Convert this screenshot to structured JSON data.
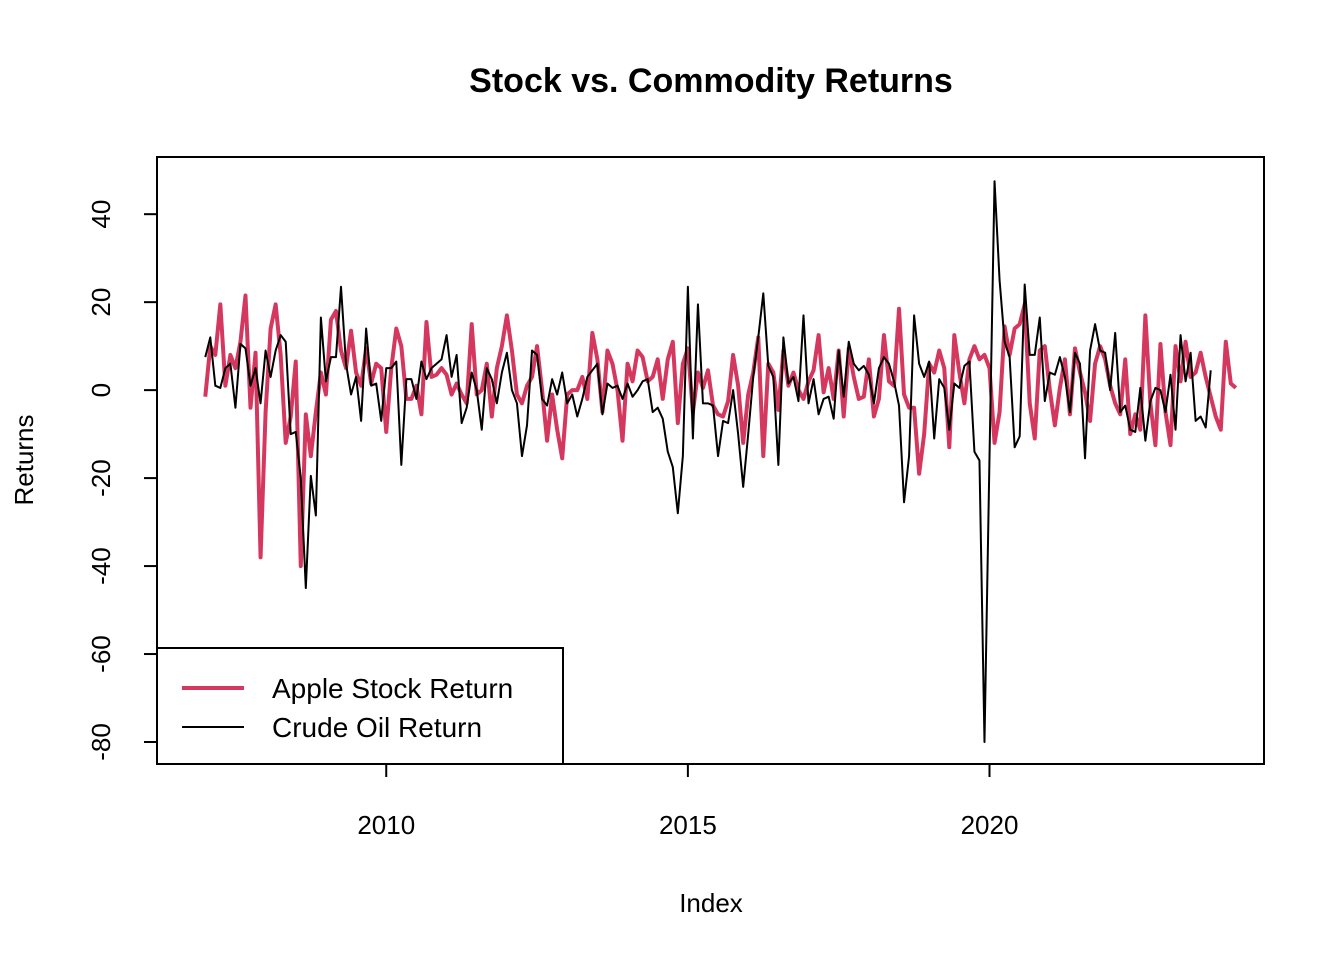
{
  "chart_data": {
    "type": "line",
    "title": "Stock vs. Commodity Returns",
    "xlabel": "Index",
    "ylabel": "Returns",
    "x_start": "2007-01",
    "x_end": "2024-01",
    "frequency": "monthly",
    "xlim": [
      2006.2,
      2024.55
    ],
    "ylim": [
      -85,
      53
    ],
    "x_ticks": [
      2010,
      2015,
      2020
    ],
    "y_ticks": [
      -80,
      -60,
      -40,
      -20,
      0,
      20,
      40
    ],
    "legend": {
      "position": "bottom-left"
    },
    "grid": false,
    "series": [
      {
        "name": "Apple Stock Return",
        "color": "#d5385f",
        "values": [
          -1.5,
          10.0,
          8.0,
          19.5,
          1.0,
          8.0,
          5.0,
          11.0,
          21.5,
          -4.0,
          8.5,
          -38.0,
          -5.0,
          14.0,
          19.5,
          8.0,
          -12.0,
          -6.0,
          6.5,
          -40.0,
          -5.5,
          -15.0,
          -5.0,
          4.0,
          -1.0,
          16.0,
          18.0,
          9.0,
          5.0,
          13.5,
          4.0,
          1.0,
          9.5,
          1.5,
          6.0,
          5.0,
          -9.5,
          5.0,
          14.0,
          10.0,
          -2.0,
          -2.0,
          1.0,
          -5.5,
          15.5,
          3.0,
          3.5,
          5.0,
          3.5,
          -1.0,
          1.5,
          -1.0,
          -3.0,
          15.0,
          -1.0,
          0.0,
          6.0,
          -6.0,
          5.0,
          10.0,
          17.0,
          9.0,
          -1.0,
          -3.0,
          1.0,
          3.0,
          10.0,
          0.0,
          -11.5,
          -1.0,
          -9.0,
          -15.5,
          -1.0,
          0.0,
          0.0,
          3.0,
          -2.0,
          13.0,
          7.0,
          -5.0,
          9.0,
          6.0,
          0.0,
          -11.5,
          6.0,
          2.0,
          9.0,
          7.5,
          2.0,
          3.0,
          7.0,
          -2.0,
          7.0,
          11.0,
          -7.5,
          6.0,
          9.5,
          -5.0,
          4.0,
          0.5,
          4.5,
          -3.5,
          -5.5,
          -6.0,
          -2.5,
          8.0,
          1.0,
          -12.0,
          -1.0,
          4.0,
          12.0,
          -15.0,
          6.0,
          4.0,
          -4.5,
          9.0,
          1.0,
          4.0,
          0.0,
          -2.0,
          2.0,
          4.5,
          12.5,
          -0.5,
          5.0,
          -2.0,
          9.0,
          -6.0,
          9.5,
          3.0,
          -2.0,
          -1.5,
          7.0,
          -6.0,
          -2.0,
          12.5,
          2.0,
          1.0,
          18.5,
          -1.0,
          -4.0,
          -4.0,
          -19.0,
          -10.0,
          6.0,
          4.0,
          9.0,
          5.0,
          -13.0,
          12.5,
          4.0,
          -3.0,
          7.0,
          10.0,
          7.0,
          8.0,
          5.0,
          -12.0,
          -5.0,
          14.5,
          8.0,
          14.0,
          15.0,
          19.5,
          -3.0,
          -11.0,
          9.0,
          10.0,
          0.0,
          -8.0,
          0.5,
          7.0,
          -5.5,
          9.5,
          4.0,
          -0.5,
          -7.0,
          6.0,
          10.0,
          7.0,
          1.0,
          -3.0,
          -5.5,
          7.0,
          -10.0,
          -5.5,
          -9.0,
          17.0,
          -3.0,
          -12.5,
          10.5,
          -5.0,
          -12.5,
          10.0,
          2.0,
          11.0,
          3.0,
          4.0,
          8.5,
          3.0,
          -1.5,
          -6.0,
          -9.0,
          11.0,
          1.5,
          0.5
        ]
      },
      {
        "name": "Crude Oil Return",
        "color": "#000000",
        "values": [
          7.5,
          12.0,
          1.0,
          0.5,
          5.0,
          6.0,
          -4.0,
          10.5,
          9.5,
          1.0,
          5.0,
          -3.0,
          9.0,
          3.0,
          9.0,
          12.5,
          11.0,
          -10.0,
          -9.5,
          -20.0,
          -45.0,
          -19.5,
          -28.5,
          16.5,
          2.0,
          7.5,
          7.5,
          23.5,
          6.0,
          -1.0,
          3.0,
          -7.0,
          14.0,
          1.0,
          1.5,
          -7.0,
          5.0,
          5.0,
          6.5,
          -17.0,
          2.5,
          2.5,
          -2.0,
          6.5,
          2.5,
          5.0,
          6.0,
          7.0,
          12.5,
          3.0,
          8.0,
          -7.5,
          -4.0,
          4.0,
          0.0,
          -9.0,
          5.0,
          2.5,
          -3.0,
          4.0,
          8.5,
          0.0,
          -3.0,
          -15.0,
          -8.0,
          9.0,
          8.0,
          -2.0,
          -3.5,
          2.5,
          -1.0,
          4.0,
          -3.0,
          -1.0,
          -6.0,
          -2.0,
          3.0,
          4.5,
          6.0,
          -5.5,
          1.5,
          0.5,
          1.0,
          -2.0,
          1.5,
          -1.5,
          0.0,
          2.0,
          2.5,
          -5.0,
          -4.0,
          -6.5,
          -14.0,
          -17.5,
          -28.0,
          -15.0,
          23.5,
          -11.0,
          19.5,
          -3.0,
          -3.0,
          -3.5,
          -15.0,
          -7.0,
          -7.5,
          0.0,
          -10.0,
          -22.0,
          -10.0,
          3.0,
          12.0,
          22.0,
          5.5,
          3.0,
          -17.0,
          12.0,
          1.5,
          3.0,
          -2.5,
          17.0,
          -3.0,
          2.5,
          -5.5,
          -2.0,
          -1.5,
          -6.5,
          9.0,
          -1.5,
          11.0,
          6.0,
          4.5,
          5.5,
          3.5,
          -3.0,
          5.0,
          7.5,
          6.0,
          2.0,
          -3.5,
          -25.5,
          -15.0,
          17.0,
          6.0,
          3.0,
          6.5,
          -11.0,
          2.5,
          0.5,
          -9.0,
          1.5,
          0.5,
          5.5,
          6.5,
          -14.0,
          -16.0,
          -80.0,
          -15.0,
          47.5,
          25.0,
          11.0,
          7.5,
          -13.0,
          -10.5,
          24.0,
          8.0,
          8.0,
          16.5,
          -2.5,
          4.0,
          3.5,
          7.5,
          3.0,
          -5.0,
          8.5,
          6.0,
          -15.5,
          9.0,
          15.0,
          9.0,
          8.5,
          0.0,
          13.0,
          -5.0,
          -3.5,
          -9.0,
          -9.5,
          0.5,
          -11.5,
          -2.5,
          0.5,
          0.0,
          -5.0,
          3.5,
          -9.0,
          12.5,
          2.0,
          8.5,
          -7.0,
          -6.0,
          -8.5,
          4.5
        ]
      }
    ]
  }
}
